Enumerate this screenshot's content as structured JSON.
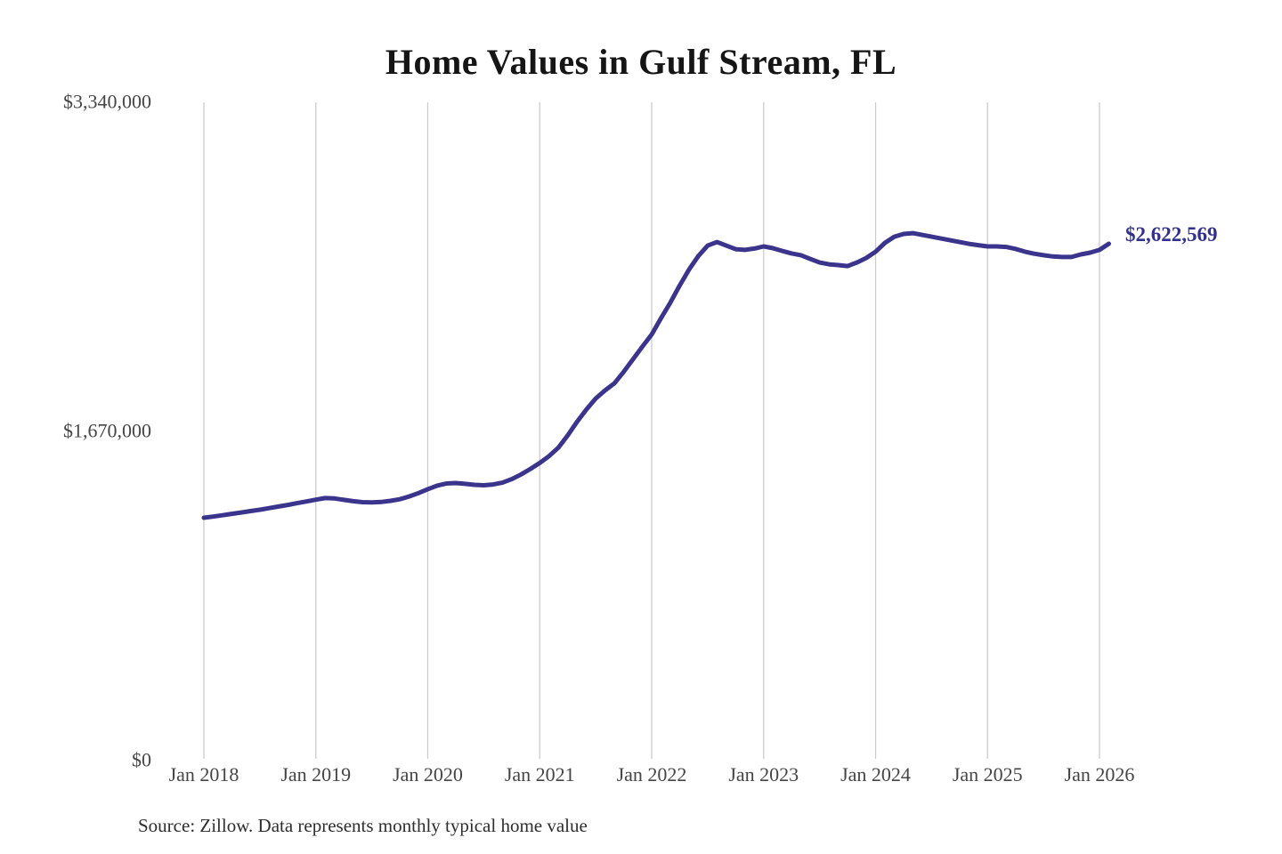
{
  "chart": {
    "title": "Home Values in Gulf Stream, FL",
    "end_label": "$2,622,569",
    "source_note": "Source: Zillow. Data represents monthly typical home value"
  },
  "chart_data": {
    "type": "line",
    "title": "Home Values in Gulf Stream, FL",
    "xlabel": "",
    "ylabel": "",
    "ylim": [
      0,
      3340000
    ],
    "grid": "vertical-only",
    "legend": "none",
    "y_ticks": [
      {
        "label": "$3,340,000",
        "value": 3340000
      },
      {
        "label": "$1,670,000",
        "value": 1670000
      },
      {
        "label": "$0",
        "value": 0
      }
    ],
    "x_ticks": [
      "Jan 2018",
      "Jan 2019",
      "Jan 2020",
      "Jan 2021",
      "Jan 2022",
      "Jan 2023",
      "Jan 2024",
      "Jan 2025",
      "Jan 2026"
    ],
    "series": [
      {
        "name": "Monthly typical home value (USD)",
        "start_month": "2018-01",
        "months_per_point": 1,
        "values": [
          1232000,
          1238000,
          1245000,
          1252000,
          1259000,
          1266000,
          1273000,
          1281000,
          1289000,
          1297000,
          1306000,
          1315000,
          1324000,
          1332000,
          1330000,
          1323000,
          1316000,
          1311000,
          1310000,
          1312000,
          1318000,
          1326000,
          1340000,
          1357000,
          1377000,
          1395000,
          1406000,
          1408000,
          1404000,
          1399000,
          1397000,
          1401000,
          1410000,
          1428000,
          1452000,
          1480000,
          1510000,
          1545000,
          1588000,
          1650000,
          1719000,
          1781000,
          1837000,
          1878000,
          1914000,
          1973000,
          2036000,
          2100000,
          2162000,
          2245000,
          2324000,
          2410000,
          2491000,
          2560000,
          2613000,
          2631000,
          2613000,
          2595000,
          2591000,
          2598000,
          2609000,
          2600000,
          2586000,
          2573000,
          2564000,
          2545000,
          2527000,
          2518000,
          2514000,
          2509000,
          2527000,
          2550000,
          2582000,
          2627000,
          2658000,
          2672000,
          2676000,
          2667000,
          2658000,
          2649000,
          2640000,
          2631000,
          2622000,
          2615000,
          2609000,
          2609000,
          2606000,
          2596000,
          2582000,
          2572000,
          2564000,
          2558000,
          2555000,
          2555000,
          2568000,
          2577000,
          2591000,
          2622569
        ],
        "last_point": {
          "month": "2026-02",
          "value": 2622569,
          "label": "$2,622,569"
        }
      }
    ],
    "colors": {
      "line": "#3a348c",
      "end_label": "#32308f",
      "gridline": "#cccccc"
    }
  }
}
